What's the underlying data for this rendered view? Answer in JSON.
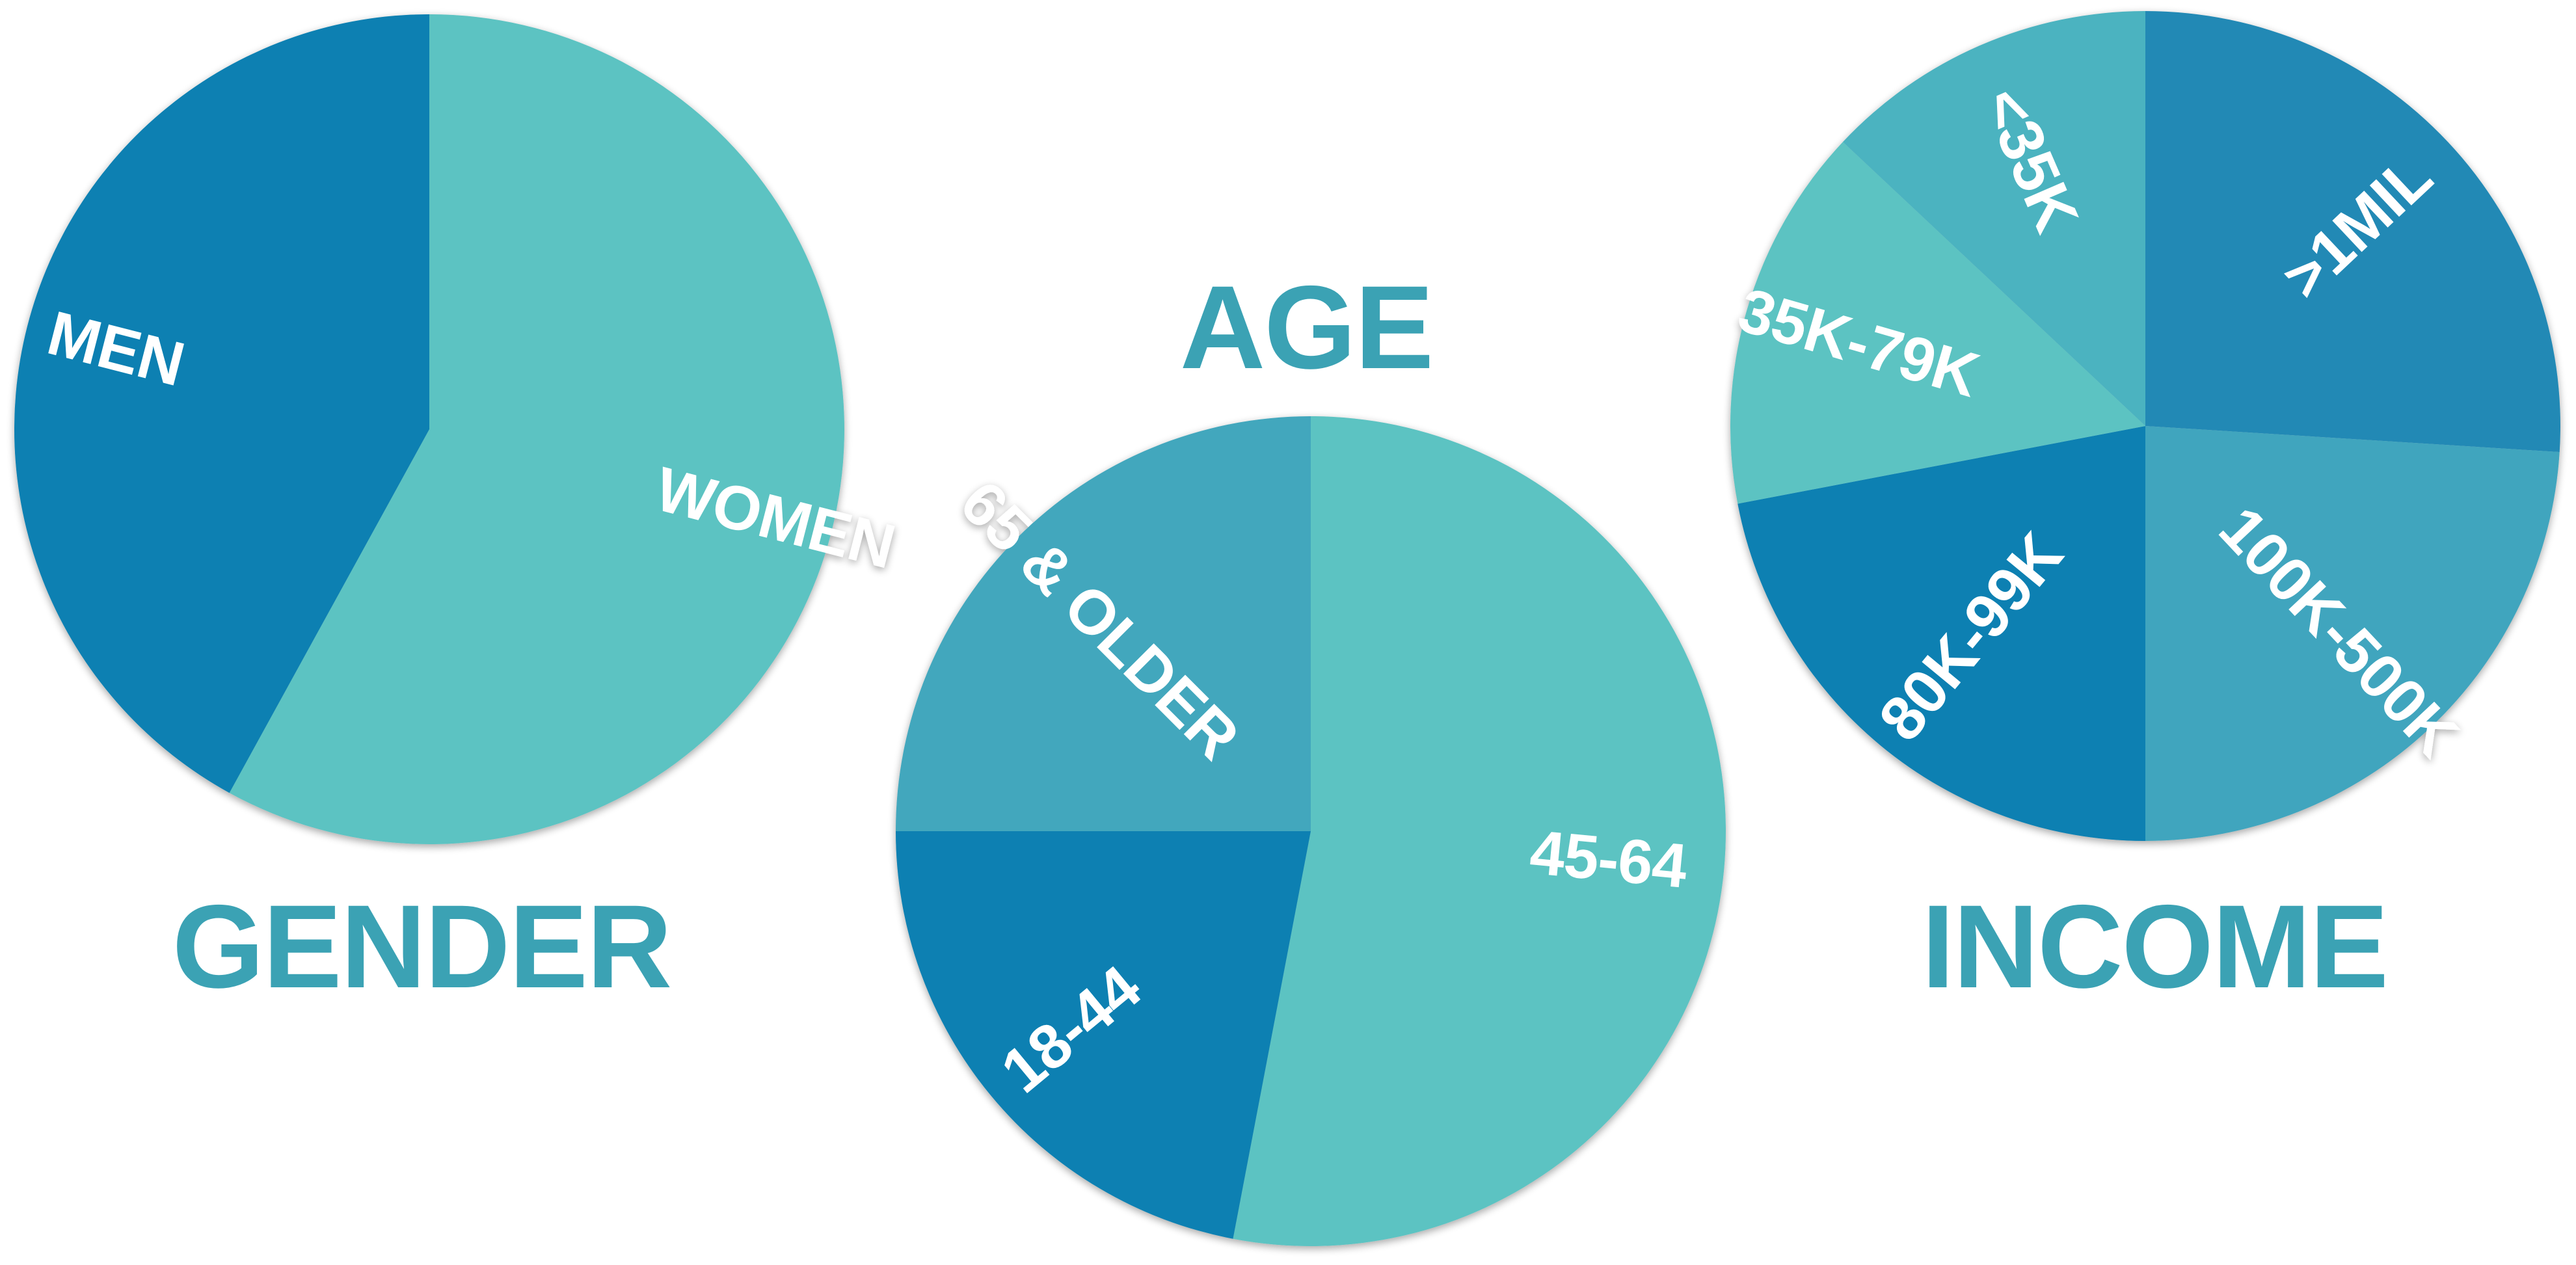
{
  "chart_data": [
    {
      "type": "pie",
      "title": "GENDER",
      "values_unit": "percent",
      "slices": [
        {
          "label": "WOMEN",
          "value": 58,
          "color": "#5cc3c2"
        },
        {
          "label": "MEN",
          "value": 42,
          "color": "#0880b2"
        }
      ]
    },
    {
      "type": "pie",
      "title": "AGE",
      "values_unit": "percent",
      "slices": [
        {
          "label": "45-64",
          "value": 53,
          "color": "#5cc3c2"
        },
        {
          "label": "18-44",
          "value": 22,
          "color": "#0880b2"
        },
        {
          "label": "65 & OLDER",
          "value": 25,
          "color": "#42a7bd"
        }
      ]
    },
    {
      "type": "pie",
      "title": "INCOME",
      "values_unit": "percent",
      "slices": [
        {
          "label": ">1MIL",
          "value": 26,
          "color": "#2189b5"
        },
        {
          "label": "100K-500K",
          "value": 24,
          "color": "#40a5be"
        },
        {
          "label": "80K-99K",
          "value": 22,
          "color": "#0880b2"
        },
        {
          "label": "35K-79K",
          "value": 15,
          "color": "#5cc3c2"
        },
        {
          "label": "<35K",
          "value": 13,
          "color": "#4bb3c0"
        }
      ]
    }
  ]
}
